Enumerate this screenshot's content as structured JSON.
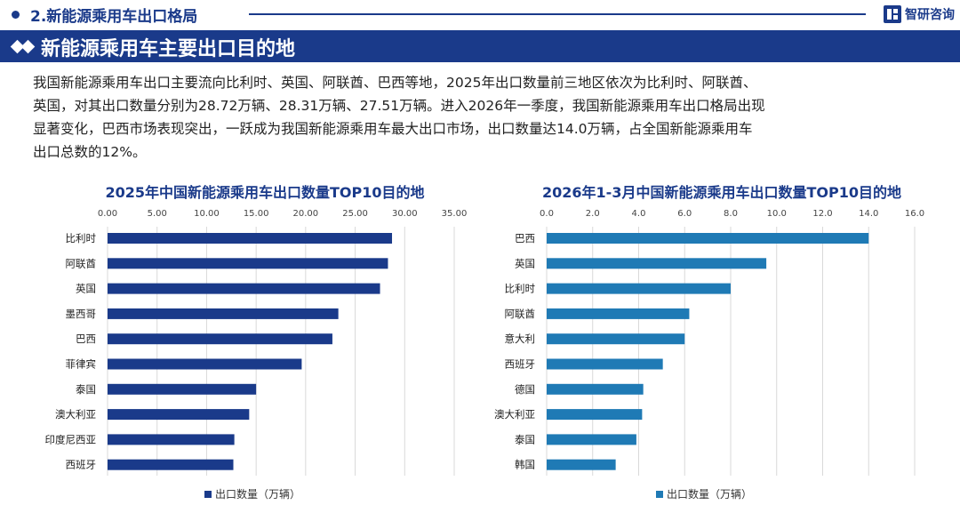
{
  "header": {
    "section_title": "2.新能源乘用车出口格局",
    "brand": "智研咨询"
  },
  "banner": {
    "title": "新能源乘用车主要出口目的地"
  },
  "intro": {
    "lines": [
      "我国新能源乘用车出口主要流向比利时、英国、阿联酋、巴西等地，2025年出口数量前三地区依次为比利时、阿联酋、",
      "英国，对其出口数量分别为28.72万辆、28.31万辆、27.51万辆。进入2026年一季度，我国新能源乘用车出口格局出现",
      "显著变化，巴西市场表现突出，一跃成为我国新能源乘用车最大出口市场，出口数量达14.0万辆，占全国新能源乘用车",
      "出口总数的12%。"
    ]
  },
  "chart_data": [
    {
      "type": "bar",
      "orientation": "horizontal",
      "title": "2025年中国新能源乘用车出口数量TOP10目的地",
      "categories": [
        "比利时",
        "阿联酋",
        "英国",
        "墨西哥",
        "巴西",
        "菲律宾",
        "泰国",
        "澳大利亚",
        "印度尼西亚",
        "西班牙"
      ],
      "series": [
        {
          "name": "出口数量（万辆）",
          "values": [
            28.72,
            28.31,
            27.51,
            23.3,
            22.7,
            19.6,
            15.0,
            14.3,
            12.8,
            12.7
          ]
        }
      ],
      "xlim": [
        0,
        35
      ],
      "ticks": [
        "0.00",
        "5.00",
        "10.00",
        "15.00",
        "20.00",
        "25.00",
        "30.00",
        "35.00"
      ],
      "color": "#1a3a8a",
      "grid": true,
      "legend": "bottom"
    },
    {
      "type": "bar",
      "orientation": "horizontal",
      "title": "2026年1-3月中国新能源乘用车出口数量TOP10目的地",
      "categories": [
        "巴西",
        "英国",
        "比利时",
        "阿联酋",
        "意大利",
        "西班牙",
        "德国",
        "澳大利亚",
        "泰国",
        "韩国"
      ],
      "series": [
        {
          "name": "出口数量（万辆）",
          "values": [
            14.0,
            9.55,
            8.0,
            6.2,
            6.0,
            5.05,
            4.2,
            4.15,
            3.9,
            3.0
          ]
        }
      ],
      "xlim": [
        0,
        16
      ],
      "ticks": [
        "0.0",
        "2.0",
        "4.0",
        "6.0",
        "8.0",
        "10.0",
        "12.0",
        "14.0",
        "16.0"
      ],
      "color": "#1f7ab5",
      "grid": true,
      "legend": "bottom"
    }
  ]
}
